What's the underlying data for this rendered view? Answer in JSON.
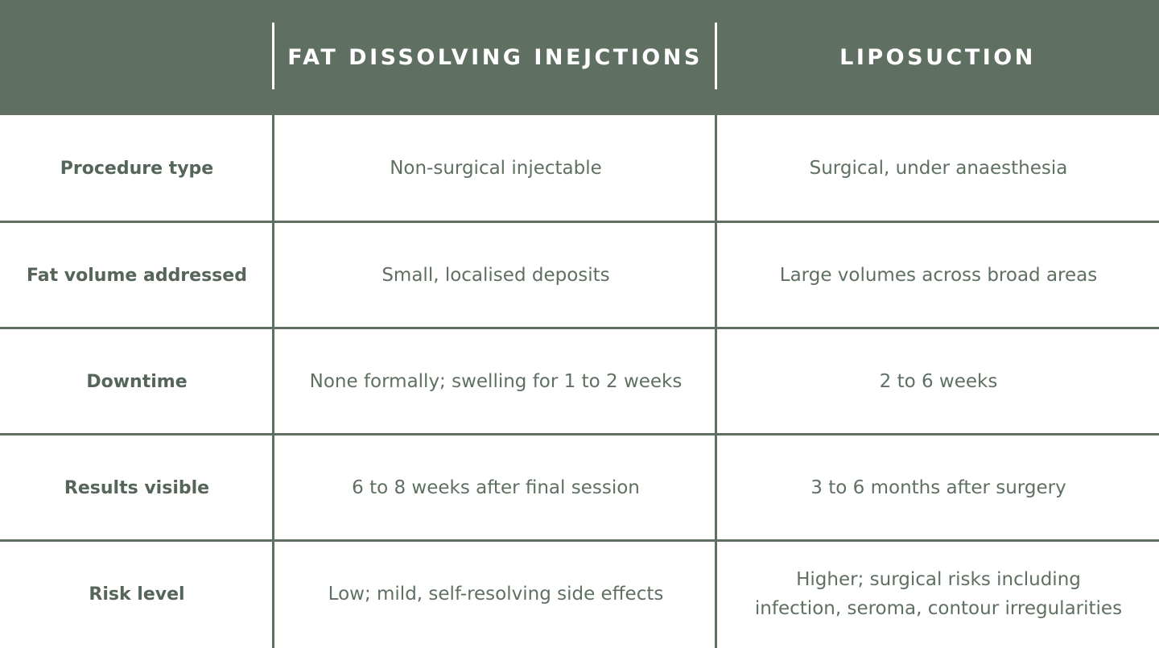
{
  "header": {
    "col1": "FAT DISSOLVING INEJCTIONS",
    "col2": "LIPOSUCTION"
  },
  "rows": [
    {
      "label": "Procedure type",
      "injections": "Non-surgical injectable",
      "liposuction": "Surgical, under anaesthesia"
    },
    {
      "label": "Fat volume addressed",
      "injections": "Small, localised deposits",
      "liposuction": "Large volumes across broad areas"
    },
    {
      "label": "Downtime",
      "injections": "None formally; swelling for 1 to 2 weeks",
      "liposuction": "2 to 6 weeks"
    },
    {
      "label": "Results visible",
      "injections": "6 to 8 weeks after final session",
      "liposuction": "3 to 6 months after surgery"
    },
    {
      "label": "Risk level",
      "injections": "Low; mild, self-resolving side effects",
      "liposuction": "Higher; surgical risks including infection, seroma, contour irregularities"
    }
  ],
  "colors": {
    "header_bg": "#5f7062",
    "header_text": "#ffffff",
    "body_text": "#5f7062",
    "grid_line": "#5f7062"
  }
}
